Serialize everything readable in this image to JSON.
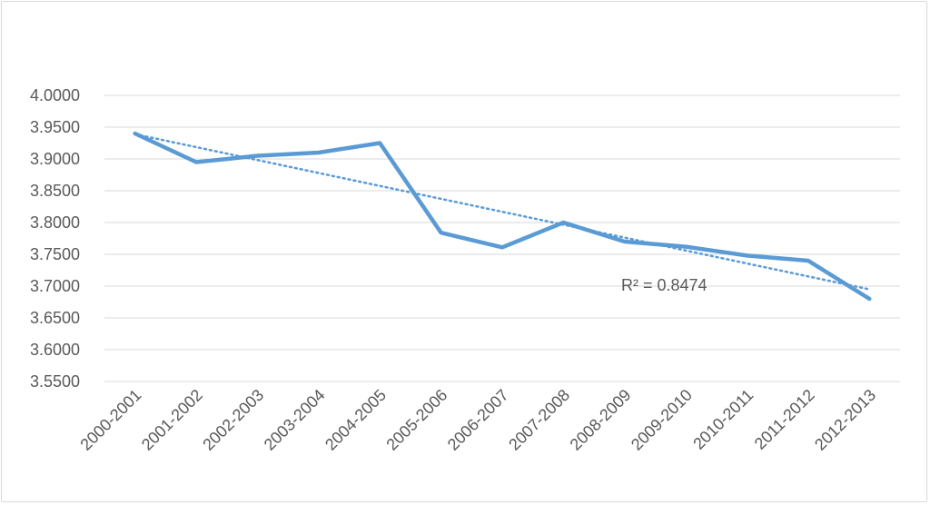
{
  "chart_data": {
    "type": "line",
    "title": "",
    "xlabel": "",
    "ylabel": "",
    "categories": [
      "2000-2001",
      "2001-2002",
      "2002-2003",
      "2003-2004",
      "2004-2005",
      "2005-2006",
      "2006-2007",
      "2007-2008",
      "2008-2009",
      "2009-2010",
      "2010-2011",
      "2011-2012",
      "2012-2013"
    ],
    "series": [
      {
        "values": [
          3.94,
          3.895,
          3.905,
          3.91,
          3.925,
          3.784,
          3.761,
          3.8,
          3.77,
          3.762,
          3.748,
          3.74,
          3.68
        ],
        "color": "#5b9bd5"
      }
    ],
    "trendline": {
      "type": "linear",
      "color": "#5b9bd5",
      "style": "dotted",
      "label": "R² = 0.8474"
    },
    "yticks": [
      "4.0000",
      "3.9500",
      "3.9000",
      "3.8500",
      "3.8000",
      "3.7500",
      "3.7000",
      "3.6500",
      "3.6000",
      "3.5500"
    ],
    "ylim": [
      3.55,
      4.0
    ],
    "grid": true,
    "legend": "none"
  }
}
